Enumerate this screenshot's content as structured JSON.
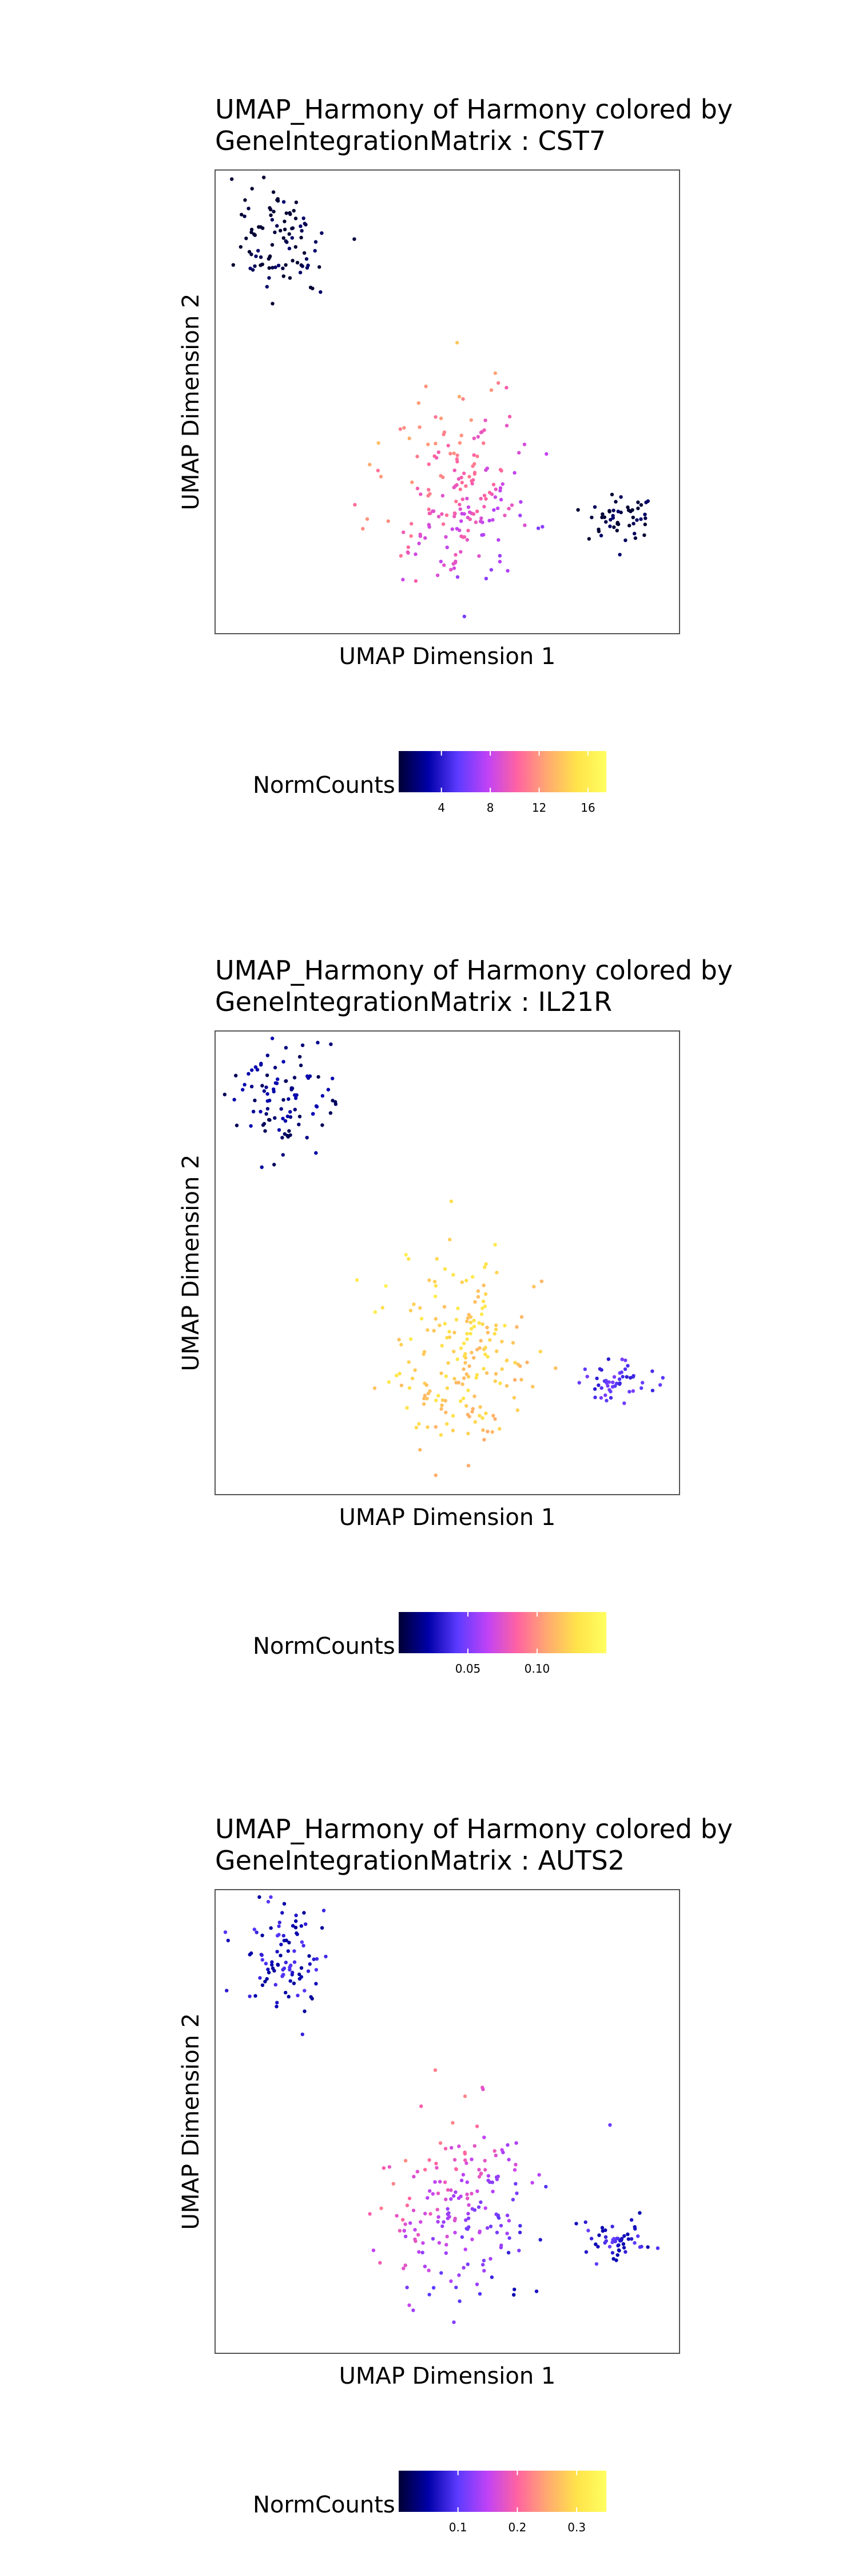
{
  "colors": {
    "gradient": [
      "#000033",
      "#0000A8",
      "#5D3BFF",
      "#C042F6",
      "#FF63A1",
      "#FFA970",
      "#FFE34A",
      "#FFFF60"
    ],
    "frame": "#555555",
    "background": "#ffffff"
  },
  "chart_data": [
    {
      "type": "scatter",
      "title_line1": "UMAP_Harmony of Harmony colored by",
      "title_line2": "GeneIntegrationMatrix : CST7",
      "xlabel": "UMAP Dimension 1",
      "ylabel": "UMAP Dimension 2",
      "legend": {
        "title": "NormCounts",
        "ticks": [
          "4",
          "8",
          "12",
          "16"
        ],
        "tick_values": [
          4,
          8,
          12,
          16
        ],
        "range": [
          0.5,
          17.5
        ],
        "placement": "bottom"
      },
      "gene": "CST7",
      "color_by_cluster": {
        "A": 0.5,
        "B": 6.5,
        "C": 15.0,
        "D": 0.5
      },
      "value_spread": 0.14
    },
    {
      "type": "scatter",
      "title_line1": "UMAP_Harmony of Harmony colored by",
      "title_line2": "GeneIntegrationMatrix : IL21R",
      "xlabel": "UMAP Dimension 1",
      "ylabel": "UMAP Dimension 2",
      "legend": {
        "title": "NormCounts",
        "ticks": [
          "0.05",
          "0.10"
        ],
        "tick_values": [
          0.05,
          0.1
        ],
        "range": [
          0.0,
          0.15
        ],
        "placement": "bottom"
      },
      "gene": "IL21R",
      "color_by_cluster": {
        "A": 0.015,
        "B": 0.115,
        "C": 0.135,
        "D": 0.04
      },
      "value_spread": 0.12
    },
    {
      "type": "scatter",
      "title_line1": "UMAP_Harmony of Harmony colored by",
      "title_line2": "GeneIntegrationMatrix : AUTS2",
      "xlabel": "UMAP Dimension 1",
      "ylabel": "UMAP Dimension 2",
      "legend": {
        "title": "NormCounts",
        "ticks": [
          "0.1",
          "0.2",
          "0.3"
        ],
        "tick_values": [
          0.1,
          0.2,
          0.3
        ],
        "range": [
          0.0,
          0.35
        ],
        "placement": "bottom"
      },
      "gene": "AUTS2",
      "color_by_cluster": {
        "A": 0.07,
        "B": 0.07,
        "C": 0.28,
        "D": 0.08
      },
      "value_spread": 0.15
    }
  ]
}
